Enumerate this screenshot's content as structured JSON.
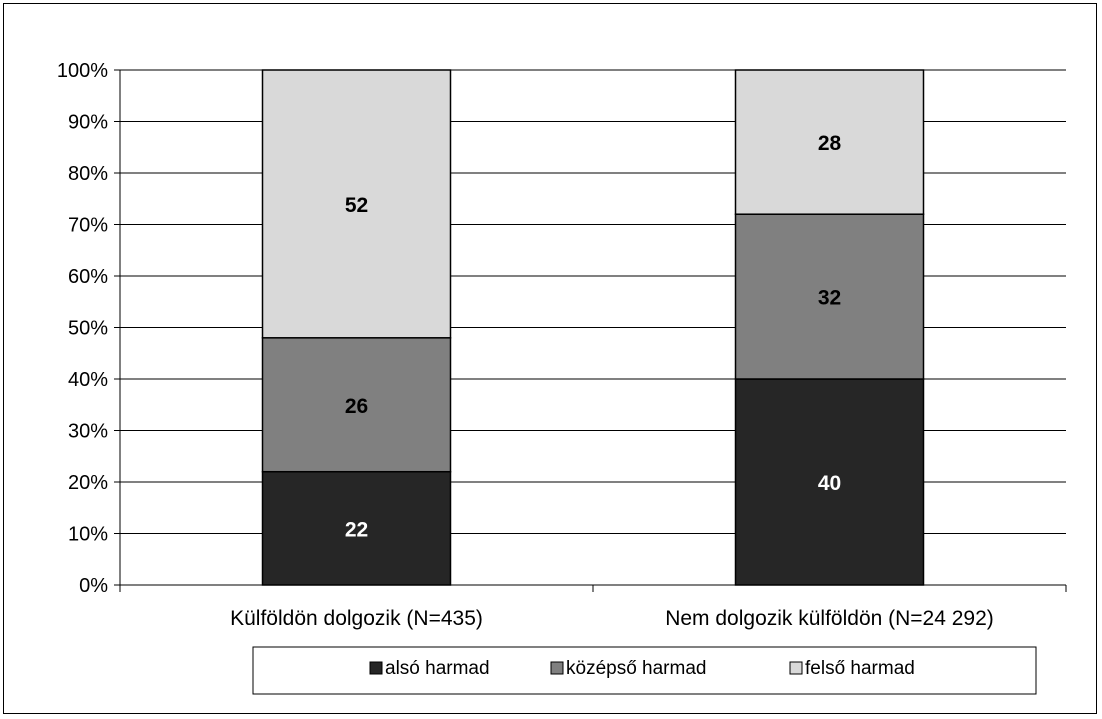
{
  "chart_data": {
    "type": "bar",
    "stacked": true,
    "categories": [
      "Külföldön dolgozik (N=435)",
      "Nem dolgozik külföldön (N=24 292)"
    ],
    "series": [
      {
        "name": "alsó harmad",
        "values": [
          22,
          40
        ],
        "color": "#262626"
      },
      {
        "name": "középső harmad",
        "values": [
          26,
          32
        ],
        "color": "#808080"
      },
      {
        "name": "felső harmad",
        "values": [
          52,
          28
        ],
        "color": "#d9d9d9"
      }
    ],
    "y_ticks": [
      "0%",
      "10%",
      "20%",
      "30%",
      "40%",
      "50%",
      "60%",
      "70%",
      "80%",
      "90%",
      "100%"
    ],
    "ylim": [
      0,
      100
    ],
    "grid": true,
    "legend_position": "bottom"
  }
}
